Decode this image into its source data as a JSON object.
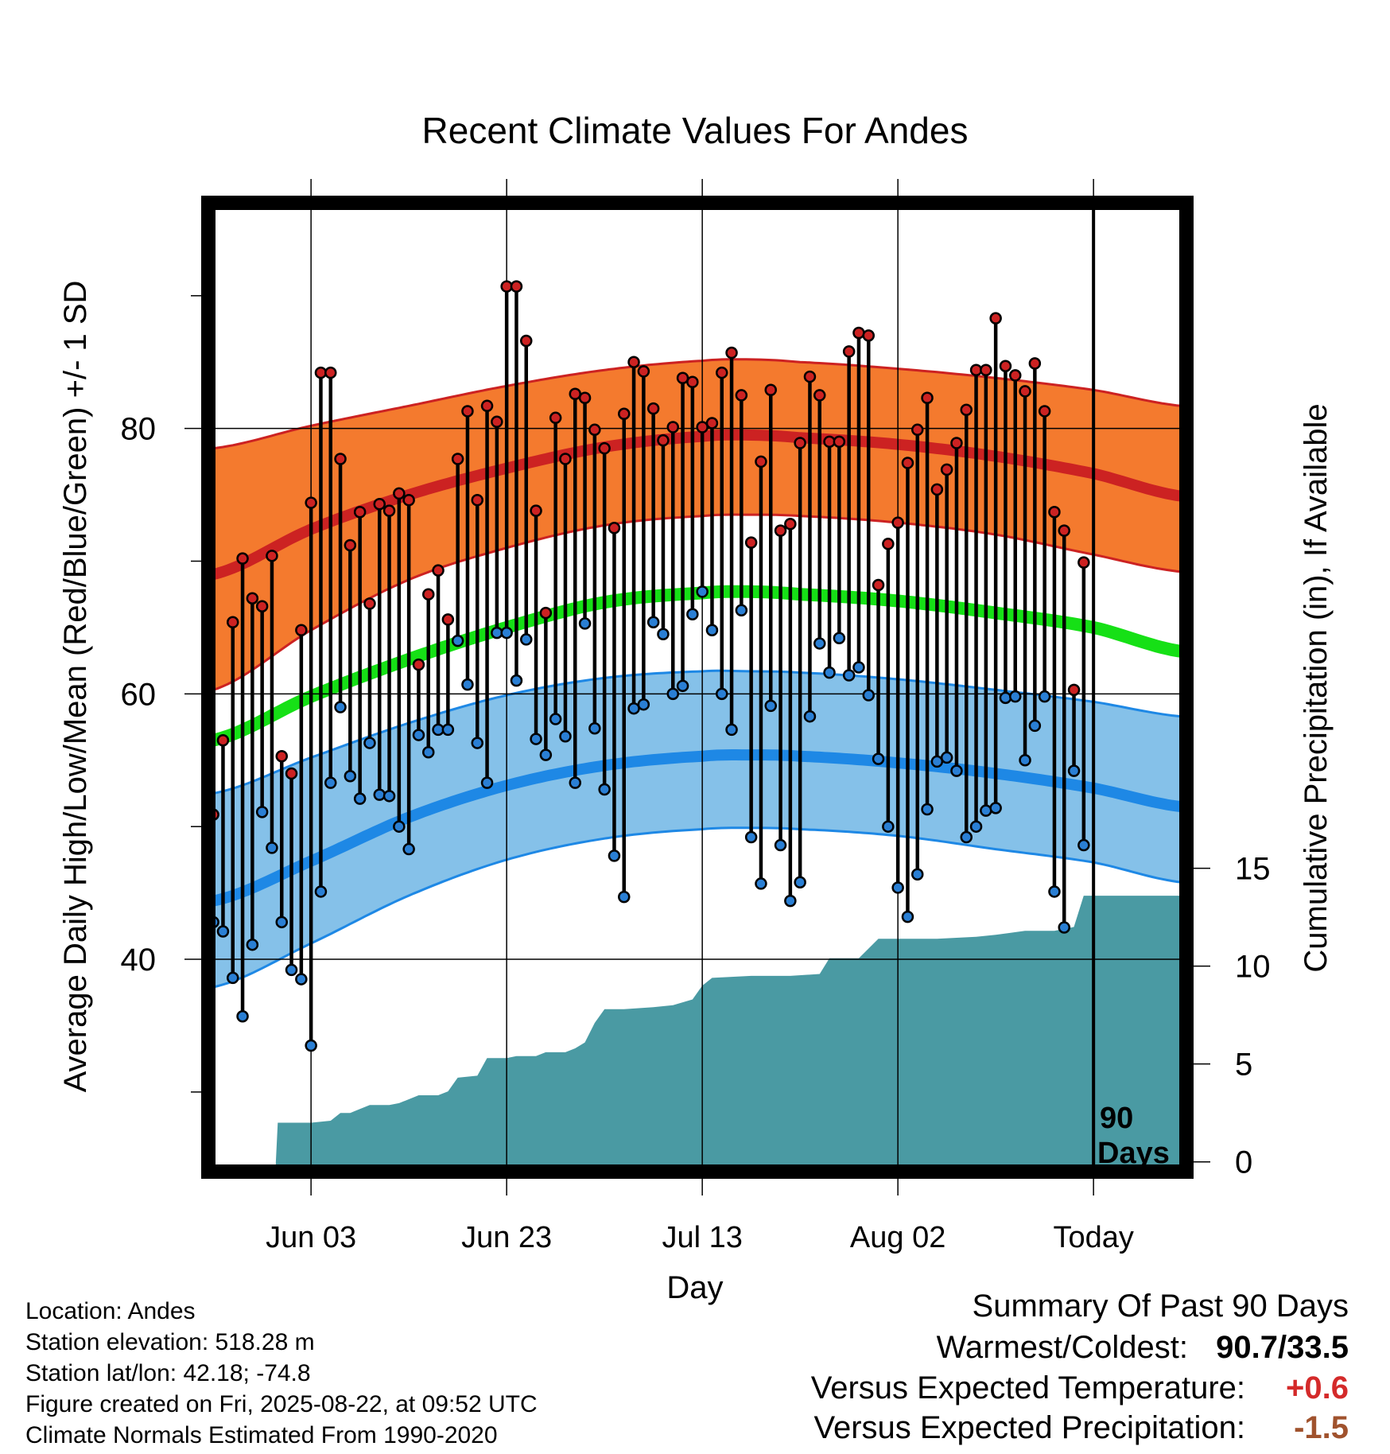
{
  "chart_data": {
    "type": "line",
    "title": "Recent Climate Values For Andes",
    "xlabel": "Day",
    "ylabel_left": "Average Daily High/Low/Mean (Red/Blue/Green) +/- 1 SD",
    "ylabel_right": "Cumulative Precipitation (in), If Available",
    "x_ticks": [
      {
        "day": 11,
        "label": "Jun 03"
      },
      {
        "day": 31,
        "label": "Jun 23"
      },
      {
        "day": 51,
        "label": "Jul 13"
      },
      {
        "day": 71,
        "label": "Aug 02"
      },
      {
        "day": 91,
        "label": "Today"
      }
    ],
    "xlim": [
      0.5,
      100.5
    ],
    "today_day": 91,
    "window_label_line1": "90",
    "window_label_line2": "Days",
    "y_left": {
      "lim": [
        24,
        97
      ],
      "major_ticks": [
        40,
        60,
        80
      ],
      "minor_ticks": [
        30,
        50,
        70,
        90
      ]
    },
    "y_right": {
      "lim": [
        -0.5,
        49
      ],
      "ticks": [
        0,
        5,
        10,
        15
      ]
    },
    "normals": {
      "days": [
        1,
        11,
        21,
        31,
        41,
        51,
        56,
        61,
        71,
        81,
        91,
        100
      ],
      "high_mean": [
        69.0,
        72.4,
        75.0,
        77.0,
        78.6,
        79.4,
        79.5,
        79.3,
        78.8,
        77.9,
        76.6,
        74.9
      ],
      "high_upper": [
        78.5,
        80.2,
        81.7,
        83.2,
        84.4,
        85.1,
        85.2,
        85.0,
        84.5,
        83.8,
        82.9,
        81.7
      ],
      "high_lower": [
        60.3,
        64.8,
        68.6,
        71.0,
        72.7,
        73.4,
        73.5,
        73.4,
        72.9,
        72.0,
        70.5,
        69.2
      ],
      "mean": [
        56.5,
        59.8,
        62.6,
        65.0,
        66.9,
        67.6,
        67.7,
        67.5,
        67.0,
        66.1,
        65.0,
        63.2
      ],
      "low_mean": [
        44.4,
        47.4,
        50.7,
        53.1,
        54.6,
        55.3,
        55.4,
        55.3,
        54.8,
        54.0,
        52.9,
        51.5
      ],
      "low_upper": [
        52.5,
        55.2,
        57.8,
        59.9,
        61.2,
        61.7,
        61.7,
        61.6,
        61.1,
        60.3,
        59.4,
        58.3
      ],
      "low_lower": [
        37.9,
        41.2,
        44.8,
        47.5,
        49.1,
        49.8,
        49.9,
        49.8,
        49.3,
        48.3,
        47.3,
        45.8
      ]
    },
    "series": [
      {
        "name": "High",
        "color": "#cc2222",
        "values": [
          50.9,
          56.5,
          65.4,
          70.2,
          67.2,
          66.6,
          70.4,
          55.3,
          54.0,
          64.8,
          74.4,
          84.2,
          84.2,
          77.7,
          71.2,
          73.7,
          66.8,
          74.3,
          73.8,
          75.1,
          74.6,
          62.2,
          67.5,
          69.3,
          65.6,
          77.7,
          81.3,
          74.6,
          81.7,
          80.5,
          90.7,
          90.7,
          86.6,
          73.8,
          66.1,
          80.8,
          77.7,
          82.6,
          82.3,
          79.9,
          78.5,
          72.5,
          81.1,
          85.0,
          84.3,
          81.5,
          79.1,
          80.1,
          83.8,
          83.5,
          80.1,
          80.4,
          84.2,
          85.7,
          82.5,
          71.4,
          77.5,
          82.9,
          72.3,
          72.8,
          78.9,
          83.9,
          82.5,
          79.0,
          79.0,
          85.8,
          87.2,
          87.0,
          68.2,
          71.3,
          72.9,
          77.4,
          79.9,
          82.3,
          75.4,
          76.9,
          78.9,
          81.4,
          84.4,
          84.4,
          88.3,
          84.7,
          84.0,
          82.8,
          84.9,
          81.3,
          73.7,
          72.3,
          60.3,
          69.9
        ],
        "lows": [
          42.8,
          42.1,
          38.6,
          35.7,
          41.1,
          51.1,
          48.4,
          42.8,
          39.2,
          38.5,
          33.5,
          45.1,
          53.3,
          59.0,
          53.8,
          52.1,
          56.3,
          52.4,
          52.3,
          50.0,
          48.3,
          56.9,
          55.6,
          57.3,
          57.3,
          64.0,
          60.7,
          56.3,
          53.3,
          64.6,
          64.6,
          61.0,
          64.1,
          56.6,
          55.4,
          58.1,
          56.8,
          53.3,
          65.3,
          57.4,
          52.8,
          47.8,
          44.7,
          58.9,
          59.2,
          65.4,
          64.5,
          60.0,
          60.6,
          66.0,
          67.7,
          64.8,
          60.0,
          57.3,
          66.3,
          49.2,
          45.7,
          59.1,
          48.6,
          44.4,
          45.8,
          58.3,
          63.8,
          61.6,
          64.2,
          61.4,
          62.0,
          59.9,
          55.1,
          50.0,
          45.4,
          43.2,
          46.4,
          51.3,
          54.9,
          55.2,
          54.2,
          49.2,
          50.0,
          51.2,
          51.4,
          59.7,
          59.8,
          55.0,
          57.6,
          59.8,
          45.1,
          42.4,
          54.2,
          48.6
        ]
      },
      {
        "name": "Low",
        "color": "#2a7fd4",
        "values": [
          42.8,
          42.1,
          38.6,
          35.7,
          41.1,
          51.1,
          48.4,
          42.8,
          39.2,
          38.5,
          33.5,
          45.1,
          53.3,
          59.0,
          53.8,
          52.1,
          56.3,
          52.4,
          52.3,
          50.0,
          48.3,
          56.9,
          55.6,
          57.3,
          57.3,
          64.0,
          60.7,
          56.3,
          53.3,
          64.6,
          64.6,
          61.0,
          64.1,
          56.6,
          55.4,
          58.1,
          56.8,
          53.3,
          65.3,
          57.4,
          52.8,
          47.8,
          44.7,
          58.9,
          59.2,
          65.4,
          64.5,
          60.0,
          60.6,
          66.0,
          67.7,
          64.8,
          60.0,
          57.3,
          66.3,
          49.2,
          45.7,
          59.1,
          48.6,
          44.4,
          45.8,
          58.3,
          63.8,
          61.6,
          64.2,
          61.4,
          62.0,
          59.9,
          55.1,
          50.0,
          45.4,
          43.2,
          46.4,
          51.3,
          54.9,
          55.2,
          54.2,
          49.2,
          50.0,
          51.2,
          51.4,
          59.7,
          59.8,
          55.0,
          57.6,
          59.8,
          45.1,
          42.4,
          54.2,
          48.6
        ]
      },
      {
        "name": "Cumulative Precipitation",
        "color": "#4a9aa3",
        "points": [
          [
            7.4,
            0
          ],
          [
            7.6,
            2.0
          ],
          [
            11,
            2.0
          ],
          [
            13,
            2.1
          ],
          [
            14,
            2.5
          ],
          [
            15,
            2.5
          ],
          [
            16,
            2.7
          ],
          [
            17,
            2.9
          ],
          [
            19,
            2.9
          ],
          [
            20,
            3.0
          ],
          [
            22,
            3.4
          ],
          [
            24,
            3.4
          ],
          [
            25,
            3.6
          ],
          [
            26,
            4.3
          ],
          [
            28,
            4.4
          ],
          [
            29,
            5.3
          ],
          [
            31,
            5.3
          ],
          [
            32,
            5.4
          ],
          [
            34,
            5.4
          ],
          [
            35,
            5.6
          ],
          [
            37,
            5.6
          ],
          [
            38,
            5.8
          ],
          [
            39,
            6.1
          ],
          [
            40,
            7.1
          ],
          [
            41,
            7.8
          ],
          [
            43,
            7.8
          ],
          [
            46,
            7.9
          ],
          [
            48,
            8.0
          ],
          [
            50,
            8.3
          ],
          [
            51,
            9.0
          ],
          [
            52,
            9.4
          ],
          [
            56,
            9.5
          ],
          [
            60,
            9.5
          ],
          [
            63,
            9.6
          ],
          [
            64,
            10.4
          ],
          [
            67,
            10.4
          ],
          [
            69,
            11.4
          ],
          [
            75,
            11.4
          ],
          [
            79,
            11.5
          ],
          [
            81,
            11.6
          ],
          [
            84,
            11.8
          ],
          [
            87,
            11.8
          ],
          [
            89,
            12.0
          ],
          [
            90,
            13.6
          ],
          [
            91,
            13.6
          ],
          [
            100.5,
            13.6
          ]
        ]
      }
    ],
    "legend": "none",
    "grid": true
  },
  "info": {
    "location": "Location: Andes",
    "elevation": "Station elevation: 518.28 m",
    "latlon": "Station lat/lon: 42.18; -74.8",
    "created": "Figure created on Fri, 2025-08-22, at 09:52 UTC",
    "normals": "Climate Normals Estimated From 1990-2020"
  },
  "summary": {
    "title": "Summary Of Past 90 Days",
    "warm_cold_label": "Warmest/Coldest:",
    "warm_cold_value": "90.7/33.5",
    "temp_label": "Versus Expected Temperature:",
    "temp_value": "+0.6",
    "temp_color": "#d42a2a",
    "precip_label": "Versus Expected Precipitation:",
    "precip_value": "-1.5",
    "precip_color": "#a0522d"
  },
  "colors": {
    "high_band": "#f47a2e",
    "high_line": "#cc2222",
    "mean_line": "#16e016",
    "low_band": "#85c1e9",
    "low_line": "#1e88e5",
    "low_band_edge": "#1e88e5",
    "precip": "#4a9aa3",
    "high_marker": "#cc2222",
    "low_marker": "#2a7fd4"
  }
}
